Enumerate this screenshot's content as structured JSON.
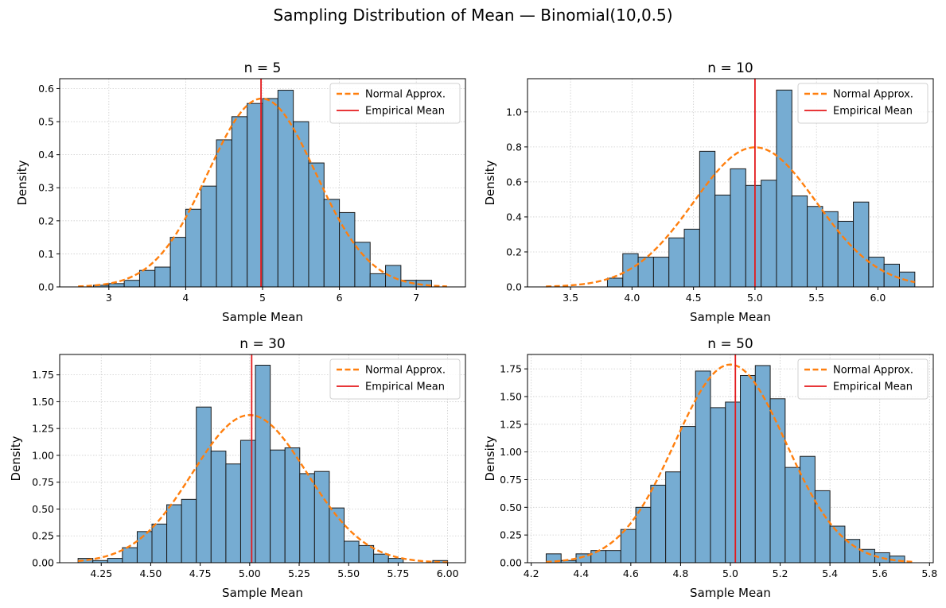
{
  "figure": {
    "title": "Sampling Distribution of Mean — Binomial(10,0.5)"
  },
  "legend": {
    "normal_label": "Normal Approx.",
    "mean_label": "Empirical Mean"
  },
  "colors": {
    "bar_fill": "#76acd2",
    "bar_edge": "#1a1a1a",
    "normal_curve": "#ff7f0e",
    "mean_line": "#e41a1c",
    "grid": "#cccccc"
  },
  "chart_data": [
    {
      "type": "bar",
      "title": "n = 5",
      "xlabel": "Sample Mean",
      "ylabel": "Density",
      "grid": true,
      "legend_position": "top-right",
      "xlim": [
        2.36,
        7.64
      ],
      "ylim": [
        0,
        0.63
      ],
      "xticks": [
        3,
        4,
        5,
        6,
        7
      ],
      "yticks": [
        0.0,
        0.1,
        0.2,
        0.3,
        0.4,
        0.5,
        0.6
      ],
      "ytick_labels": [
        "0.0",
        "0.1",
        "0.2",
        "0.3",
        "0.4",
        "0.5",
        "0.6"
      ],
      "xtick_labels": [
        "3",
        "4",
        "5",
        "6",
        "7"
      ],
      "bins": [
        2.6,
        2.8,
        3.0,
        3.2,
        3.4,
        3.6,
        3.8,
        4.0,
        4.2,
        4.4,
        4.6,
        4.8,
        5.0,
        5.2,
        5.4,
        5.6,
        5.8,
        6.0,
        6.2,
        6.4,
        6.6,
        6.8,
        7.0,
        7.2,
        7.4
      ],
      "density": [
        0.0,
        0.005,
        0.01,
        0.02,
        0.05,
        0.06,
        0.15,
        0.235,
        0.305,
        0.445,
        0.515,
        0.555,
        0.57,
        0.595,
        0.5,
        0.375,
        0.265,
        0.225,
        0.135,
        0.04,
        0.065,
        0.02,
        0.02,
        0.0
      ],
      "normal": {
        "mean": 4.99,
        "sd": 0.7,
        "xrange": [
          2.6,
          7.4
        ]
      },
      "empirical_mean": 4.98
    },
    {
      "type": "bar",
      "title": "n = 10",
      "xlabel": "Sample Mean",
      "ylabel": "Density",
      "grid": true,
      "legend_position": "top-right",
      "xlim": [
        3.15,
        6.45
      ],
      "ylim": [
        0,
        1.19
      ],
      "xticks": [
        3.5,
        4.0,
        4.5,
        5.0,
        5.5,
        6.0
      ],
      "yticks": [
        0.0,
        0.2,
        0.4,
        0.6,
        0.8,
        1.0
      ],
      "ytick_labels": [
        "0.0",
        "0.2",
        "0.4",
        "0.6",
        "0.8",
        "1.0"
      ],
      "xtick_labels": [
        "3.5",
        "4.0",
        "4.5",
        "5.0",
        "5.5",
        "6.0"
      ],
      "bins": [
        3.3,
        3.425,
        3.55,
        3.675,
        3.8,
        3.925,
        4.05,
        4.175,
        4.3,
        4.425,
        4.55,
        4.675,
        4.8,
        4.925,
        5.05,
        5.175,
        5.3,
        5.425,
        5.55,
        5.675,
        5.8,
        5.925,
        6.05,
        6.175,
        6.3
      ],
      "density": [
        0.0,
        0.0,
        0.0,
        0.0,
        0.05,
        0.19,
        0.17,
        0.17,
        0.28,
        0.33,
        0.775,
        0.525,
        0.675,
        0.58,
        0.61,
        1.125,
        0.52,
        0.46,
        0.43,
        0.375,
        0.485,
        0.17,
        0.13,
        0.085,
        0.06
      ],
      "normal": {
        "mean": 5.0,
        "sd": 0.5,
        "xrange": [
          3.3,
          6.3
        ]
      },
      "empirical_mean": 5.0
    },
    {
      "type": "bar",
      "title": "n = 30",
      "xlabel": "Sample Mean",
      "ylabel": "Density",
      "grid": true,
      "legend_position": "top-right",
      "xlim": [
        4.04,
        6.09
      ],
      "ylim": [
        0,
        1.94
      ],
      "xticks": [
        4.25,
        4.5,
        4.75,
        5.0,
        5.25,
        5.5,
        5.75,
        6.0
      ],
      "yticks": [
        0.0,
        0.25,
        0.5,
        0.75,
        1.0,
        1.25,
        1.5,
        1.75
      ],
      "ytick_labels": [
        "0.00",
        "0.25",
        "0.50",
        "0.75",
        "1.00",
        "1.25",
        "1.50",
        "1.75"
      ],
      "xtick_labels": [
        "4.25",
        "4.50",
        "4.75",
        "5.00",
        "5.25",
        "5.50",
        "5.75",
        "6.00"
      ],
      "bins": [
        4.133,
        4.2077,
        4.2823,
        4.357,
        4.4317,
        4.5063,
        4.581,
        4.6557,
        4.7303,
        4.805,
        4.8797,
        4.9543,
        5.029,
        5.1037,
        5.1783,
        5.253,
        5.3277,
        5.4023,
        5.477,
        5.5517,
        5.6263,
        5.701,
        5.7757,
        5.8503,
        5.925,
        6.0
      ],
      "density": [
        0.04,
        0.02,
        0.04,
        0.14,
        0.29,
        0.36,
        0.54,
        0.59,
        1.45,
        1.04,
        0.92,
        1.14,
        1.84,
        1.05,
        1.07,
        0.83,
        0.85,
        0.51,
        0.2,
        0.16,
        0.08,
        0.04,
        0.0,
        0.0,
        0.02
      ],
      "normal": {
        "mean": 5.0,
        "sd": 0.29,
        "xrange": [
          4.133,
          6.0
        ]
      },
      "empirical_mean": 5.01
    },
    {
      "type": "bar",
      "title": "n = 50",
      "xlabel": "Sample Mean",
      "ylabel": "Density",
      "grid": true,
      "legend_position": "top-right",
      "xlim": [
        4.185,
        5.815
      ],
      "ylim": [
        0,
        1.88
      ],
      "xticks": [
        4.2,
        4.4,
        4.6,
        4.8,
        5.0,
        5.2,
        5.4,
        5.6,
        5.8
      ],
      "yticks": [
        0.0,
        0.25,
        0.5,
        0.75,
        1.0,
        1.25,
        1.5,
        1.75
      ],
      "ytick_labels": [
        "0.00",
        "0.25",
        "0.50",
        "0.75",
        "1.00",
        "1.25",
        "1.50",
        "1.75"
      ],
      "xtick_labels": [
        "4.2",
        "4.4",
        "4.6",
        "4.8",
        "5.0",
        "5.2",
        "5.4",
        "5.6",
        "5.8"
      ],
      "bins": [
        4.26,
        4.32,
        4.38,
        4.44,
        4.5,
        4.56,
        4.62,
        4.68,
        4.74,
        4.8,
        4.86,
        4.92,
        4.98,
        5.04,
        5.1,
        5.16,
        5.22,
        5.28,
        5.34,
        5.4,
        5.46,
        5.52,
        5.58,
        5.64,
        5.7,
        5.74
      ],
      "density": [
        0.08,
        0.02,
        0.08,
        0.11,
        0.11,
        0.3,
        0.5,
        0.7,
        0.82,
        1.23,
        1.73,
        1.4,
        1.45,
        1.69,
        1.78,
        1.48,
        0.86,
        0.96,
        0.65,
        0.33,
        0.21,
        0.12,
        0.09,
        0.06,
        0.0
      ],
      "normal": {
        "mean": 5.0,
        "sd": 0.223,
        "xrange": [
          4.26,
          5.74
        ]
      },
      "empirical_mean": 5.02
    }
  ]
}
